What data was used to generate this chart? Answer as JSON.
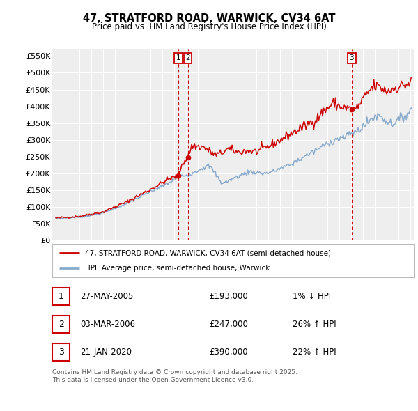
{
  "title_line1": "47, STRATFORD ROAD, WARWICK, CV34 6AT",
  "title_line2": "Price paid vs. HM Land Registry's House Price Index (HPI)",
  "legend_label1": "47, STRATFORD ROAD, WARWICK, CV34 6AT (semi-detached house)",
  "legend_label2": "HPI: Average price, semi-detached house, Warwick",
  "red_line_color": "#cc0000",
  "blue_line_color": "#88aacc",
  "transactions": [
    {
      "label": "1",
      "date_num": 2005.38,
      "price": 193000
    },
    {
      "label": "2",
      "date_num": 2006.17,
      "price": 247000
    },
    {
      "label": "3",
      "date_num": 2020.05,
      "price": 390000
    }
  ],
  "table_rows": [
    {
      "num": "1",
      "date": "27-MAY-2005",
      "price": "£193,000",
      "change": "1% ↓ HPI"
    },
    {
      "num": "2",
      "date": "03-MAR-2006",
      "price": "£247,000",
      "change": "26% ↑ HPI"
    },
    {
      "num": "3",
      "date": "21-JAN-2020",
      "price": "£390,000",
      "change": "22% ↑ HPI"
    }
  ],
  "footer": "Contains HM Land Registry data © Crown copyright and database right 2025.\nThis data is licensed under the Open Government Licence v3.0.",
  "ylim": [
    0,
    570000
  ],
  "yticks": [
    0,
    50000,
    100000,
    150000,
    200000,
    250000,
    300000,
    350000,
    400000,
    450000,
    500000,
    550000
  ],
  "ytick_labels": [
    "£0",
    "£50K",
    "£100K",
    "£150K",
    "£200K",
    "£250K",
    "£300K",
    "£350K",
    "£400K",
    "£450K",
    "£500K",
    "£550K"
  ],
  "background_color": "#ffffff",
  "plot_bg_color": "#eeeeee",
  "grid_color": "#ffffff",
  "xlim_left": 1994.7,
  "xlim_right": 2025.3
}
